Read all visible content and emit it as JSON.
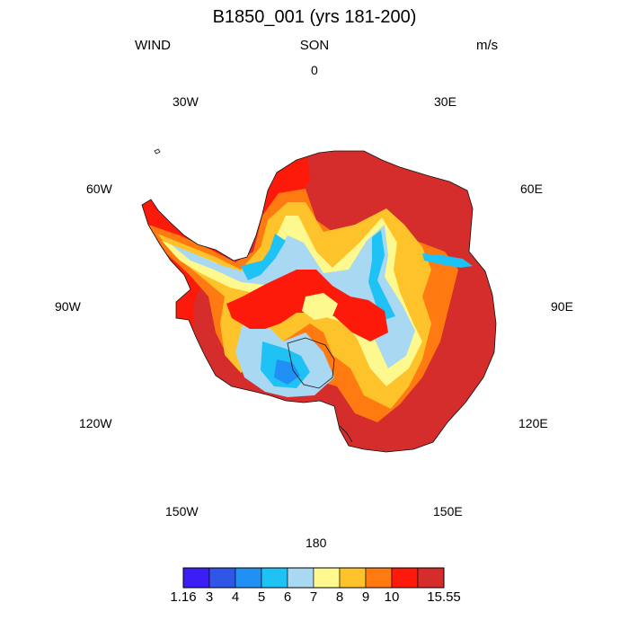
{
  "title": "B1850_001 (yrs 181-200)",
  "variable": "WIND",
  "season": "SON",
  "units": "m/s",
  "longitude_labels": {
    "n0": "0",
    "e30": "30E",
    "e60": "60E",
    "e90": "90E",
    "e120": "120E",
    "e150": "150E",
    "s180": "180",
    "w150": "150W",
    "w120": "120W",
    "w90": "90W",
    "w60": "60W",
    "w30": "30W"
  },
  "colorbar": {
    "colors": [
      "#3a1ef5",
      "#2f56e6",
      "#2190f5",
      "#1ec2f5",
      "#a8d8f2",
      "#fef98e",
      "#fec22a",
      "#ff7a10",
      "#fe1a0a",
      "#d52c2c"
    ],
    "labels": [
      "1.16",
      "3",
      "4",
      "5",
      "6",
      "7",
      "8",
      "9",
      "10",
      "15.55"
    ]
  }
}
